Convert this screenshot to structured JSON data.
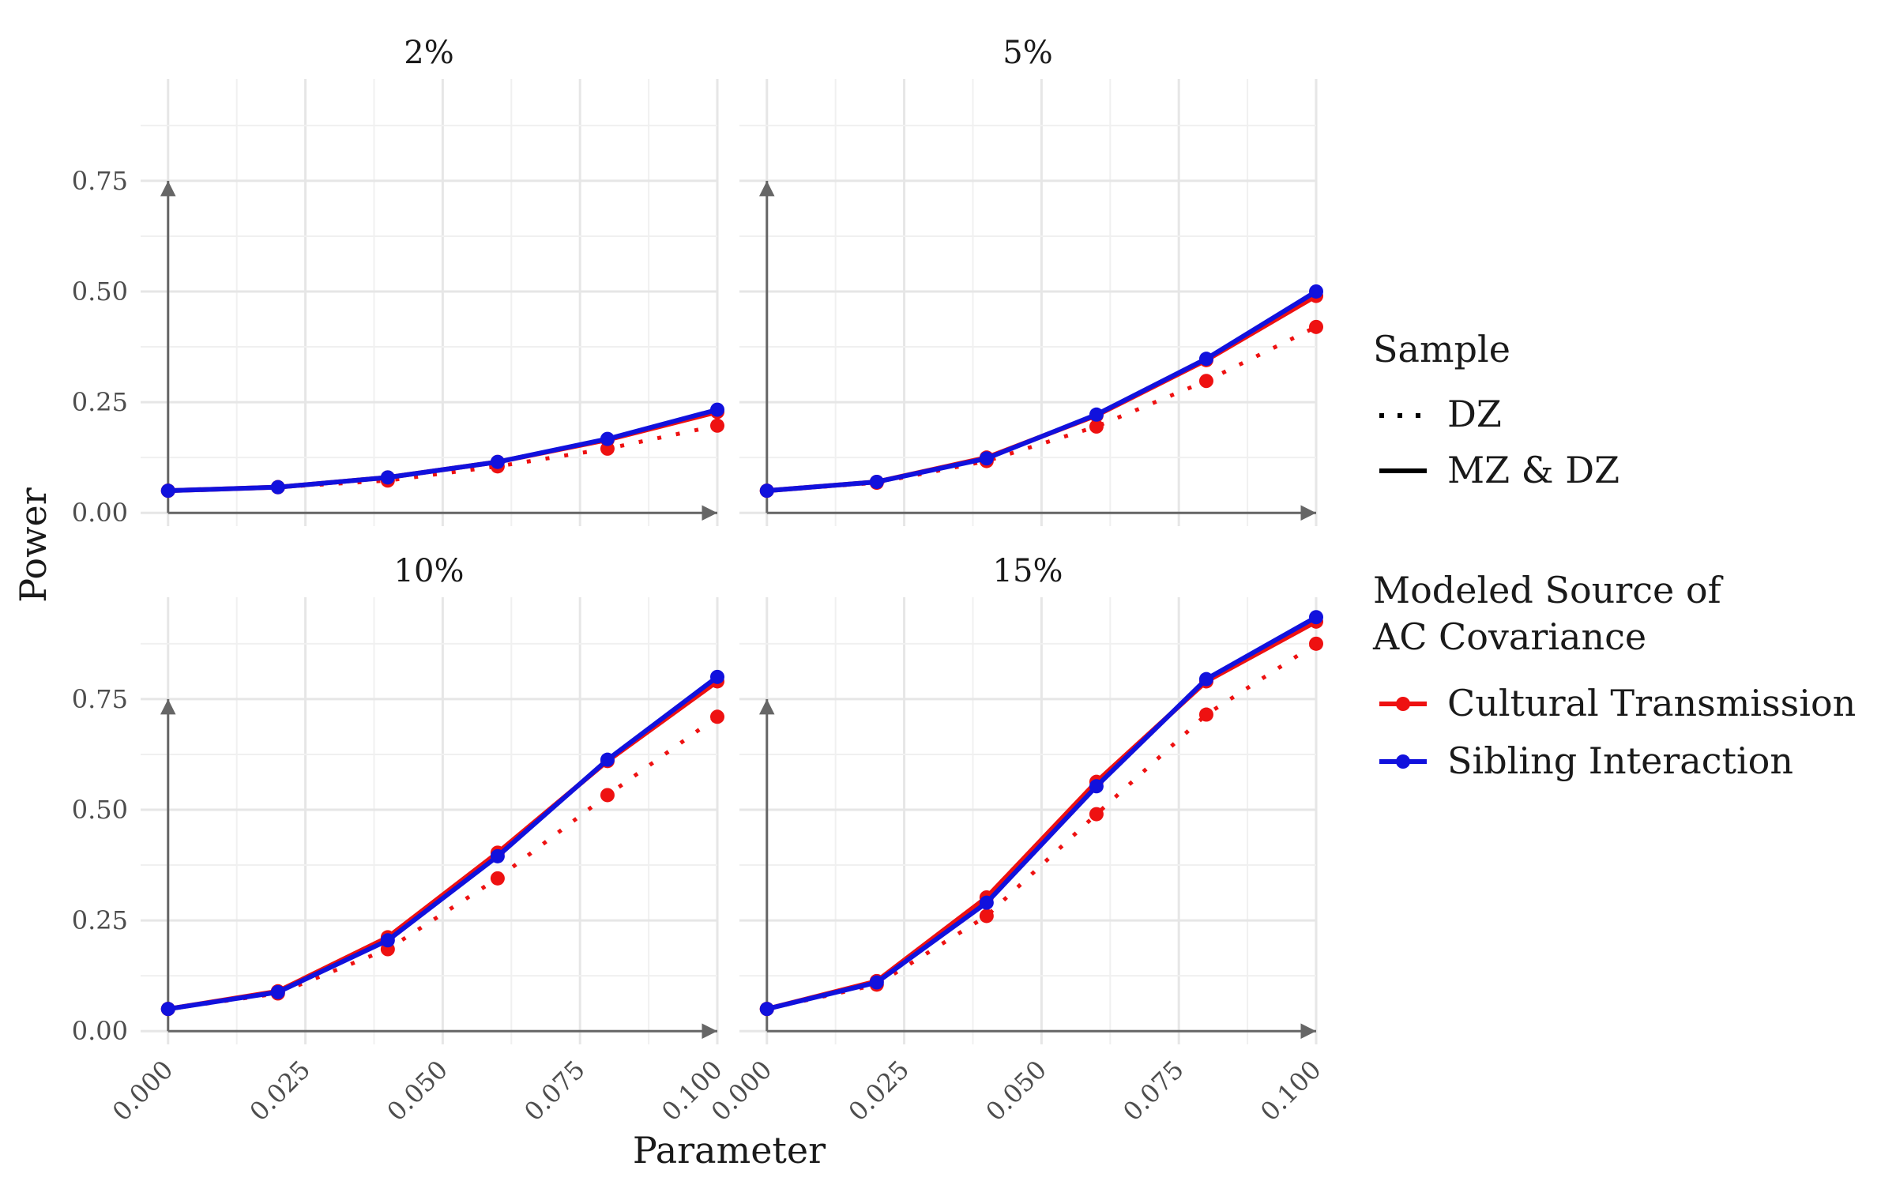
{
  "chart_data": {
    "type": "line",
    "xlabel": "Parameter",
    "ylabel": "Power",
    "x_ticks": [
      "0.000",
      "0.025",
      "0.050",
      "0.075",
      "0.100"
    ],
    "y_ticks": [
      "0.00",
      "0.25",
      "0.50",
      "0.75"
    ],
    "xlim": [
      -0.005,
      0.1
    ],
    "ylim": [
      -0.03,
      0.98
    ],
    "grid": true,
    "legend_placement": "right",
    "colors": {
      "Cultural Transmission": "#ee1111",
      "Sibling Interaction": "#1111dd"
    },
    "legend": {
      "sample": {
        "title": "Sample",
        "items": [
          {
            "label": "DZ",
            "linetype": "dotted"
          },
          {
            "label": "MZ & DZ",
            "linetype": "solid"
          }
        ]
      },
      "source": {
        "title_line1": "Modeled Source of",
        "title_line2": "AC Covariance",
        "items": [
          {
            "label": "Cultural Transmission",
            "color": "#ee1111"
          },
          {
            "label": "Sibling Interaction",
            "color": "#1111dd"
          }
        ]
      }
    },
    "x": [
      0.0,
      0.02,
      0.04,
      0.06,
      0.08,
      0.1
    ],
    "panels": [
      {
        "title": "2%",
        "series": [
          {
            "source": "Cultural Transmission",
            "sample": "DZ",
            "values": [
              0.05,
              0.058,
              0.073,
              0.105,
              0.145,
              0.197
            ]
          },
          {
            "source": "Cultural Transmission",
            "sample": "MZ & DZ",
            "values": [
              0.05,
              0.058,
              0.08,
              0.115,
              0.165,
              0.228
            ]
          },
          {
            "source": "Sibling Interaction",
            "sample": "MZ & DZ",
            "values": [
              0.05,
              0.058,
              0.08,
              0.115,
              0.167,
              0.233
            ]
          }
        ]
      },
      {
        "title": "5%",
        "series": [
          {
            "source": "Cultural Transmission",
            "sample": "DZ",
            "values": [
              0.05,
              0.068,
              0.117,
              0.195,
              0.298,
              0.42
            ]
          },
          {
            "source": "Cultural Transmission",
            "sample": "MZ & DZ",
            "values": [
              0.05,
              0.07,
              0.125,
              0.22,
              0.345,
              0.49
            ]
          },
          {
            "source": "Sibling Interaction",
            "sample": "MZ & DZ",
            "values": [
              0.05,
              0.07,
              0.123,
              0.222,
              0.348,
              0.5
            ]
          }
        ]
      },
      {
        "title": "10%",
        "series": [
          {
            "source": "Cultural Transmission",
            "sample": "DZ",
            "values": [
              0.05,
              0.085,
              0.185,
              0.345,
              0.533,
              0.71
            ]
          },
          {
            "source": "Cultural Transmission",
            "sample": "MZ & DZ",
            "values": [
              0.05,
              0.09,
              0.212,
              0.403,
              0.61,
              0.79
            ]
          },
          {
            "source": "Sibling Interaction",
            "sample": "MZ & DZ",
            "values": [
              0.05,
              0.088,
              0.205,
              0.395,
              0.613,
              0.8
            ]
          }
        ]
      },
      {
        "title": "15%",
        "series": [
          {
            "source": "Cultural Transmission",
            "sample": "DZ",
            "values": [
              0.05,
              0.105,
              0.26,
              0.49,
              0.715,
              0.875
            ]
          },
          {
            "source": "Cultural Transmission",
            "sample": "MZ & DZ",
            "values": [
              0.05,
              0.113,
              0.302,
              0.563,
              0.79,
              0.925
            ]
          },
          {
            "source": "Sibling Interaction",
            "sample": "MZ & DZ",
            "values": [
              0.05,
              0.11,
              0.29,
              0.553,
              0.795,
              0.935
            ]
          }
        ]
      }
    ]
  }
}
